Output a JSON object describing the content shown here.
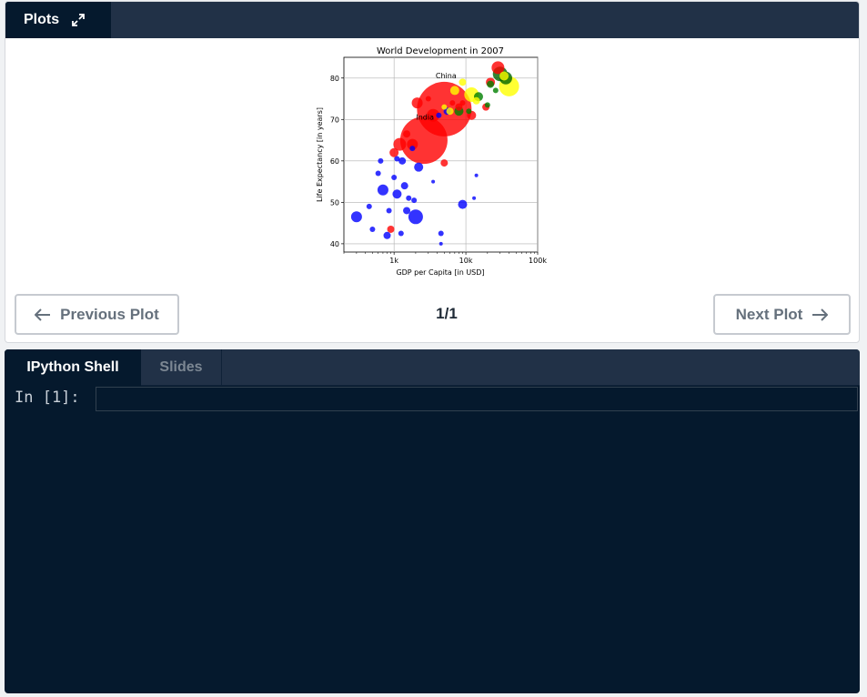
{
  "plots_panel": {
    "tab_label": "Plots",
    "expand_icon": "expand-icon",
    "counter": "1/1",
    "prev_label": "Previous Plot",
    "next_label": "Next Plot"
  },
  "chart_data": {
    "type": "scatter",
    "title": "World Development in 2007",
    "xlabel": "GDP per Capita [in USD]",
    "ylabel": "Life Expectancy [in years]",
    "xscale": "log",
    "xlim": [
      200,
      100000
    ],
    "ylim": [
      38,
      85
    ],
    "xticks": [
      "1k",
      "10k",
      "100k"
    ],
    "yticks": [
      "40",
      "50",
      "60",
      "70",
      "80"
    ],
    "grid": true,
    "annotations": [
      {
        "text": "India",
        "x": 2700,
        "y": 70
      },
      {
        "text": "China",
        "x": 5300,
        "y": 80
      }
    ],
    "points": [
      {
        "x": 2600,
        "y": 65,
        "c": "#ff0000",
        "s": 26
      },
      {
        "x": 5000,
        "y": 72.5,
        "c": "#ff0000",
        "s": 30
      },
      {
        "x": 1800,
        "y": 64,
        "c": "#ff0000",
        "s": 6
      },
      {
        "x": 1200,
        "y": 64,
        "c": "#ff0000",
        "s": 7
      },
      {
        "x": 1000,
        "y": 62,
        "c": "#ff0000",
        "s": 5
      },
      {
        "x": 2100,
        "y": 74,
        "c": "#ff0000",
        "s": 6
      },
      {
        "x": 3500,
        "y": 71,
        "c": "#ff0000",
        "s": 7
      },
      {
        "x": 12000,
        "y": 71,
        "c": "#ff0000",
        "s": 5
      },
      {
        "x": 28000,
        "y": 82.5,
        "c": "#ff0000",
        "s": 7
      },
      {
        "x": 22000,
        "y": 79,
        "c": "#ff0000",
        "s": 5
      },
      {
        "x": 19000,
        "y": 73,
        "c": "#ff0000",
        "s": 4
      },
      {
        "x": 5000,
        "y": 59.5,
        "c": "#ff0000",
        "s": 4
      },
      {
        "x": 900,
        "y": 43.5,
        "c": "#ff0000",
        "s": 4
      },
      {
        "x": 1500,
        "y": 66.5,
        "c": "#ff0000",
        "s": 4
      },
      {
        "x": 8000,
        "y": 73,
        "c": "#ff0000",
        "s": 4
      },
      {
        "x": 9000,
        "y": 74,
        "c": "#ff0000",
        "s": 3
      },
      {
        "x": 3000,
        "y": 75,
        "c": "#ff0000",
        "s": 3
      },
      {
        "x": 6500,
        "y": 74,
        "c": "#ff0000",
        "s": 3
      },
      {
        "x": 2200,
        "y": 58.5,
        "c": "#0000ff",
        "s": 5
      },
      {
        "x": 2000,
        "y": 46.5,
        "c": "#0000ff",
        "s": 8
      },
      {
        "x": 300,
        "y": 46.5,
        "c": "#0000ff",
        "s": 6
      },
      {
        "x": 700,
        "y": 53,
        "c": "#0000ff",
        "s": 6
      },
      {
        "x": 1100,
        "y": 52,
        "c": "#0000ff",
        "s": 5
      },
      {
        "x": 1300,
        "y": 60,
        "c": "#0000ff",
        "s": 4
      },
      {
        "x": 1400,
        "y": 54,
        "c": "#0000ff",
        "s": 4
      },
      {
        "x": 1500,
        "y": 48,
        "c": "#0000ff",
        "s": 4
      },
      {
        "x": 1900,
        "y": 50.5,
        "c": "#0000ff",
        "s": 3
      },
      {
        "x": 9000,
        "y": 49.5,
        "c": "#0000ff",
        "s": 5
      },
      {
        "x": 1800,
        "y": 63,
        "c": "#0000ff",
        "s": 3
      },
      {
        "x": 800,
        "y": 42,
        "c": "#0000ff",
        "s": 4
      },
      {
        "x": 1250,
        "y": 42.5,
        "c": "#0000ff",
        "s": 3
      },
      {
        "x": 4500,
        "y": 42.5,
        "c": "#0000ff",
        "s": 3
      },
      {
        "x": 600,
        "y": 57,
        "c": "#0000ff",
        "s": 3
      },
      {
        "x": 1000,
        "y": 56,
        "c": "#0000ff",
        "s": 3
      },
      {
        "x": 1600,
        "y": 51,
        "c": "#0000ff",
        "s": 3
      },
      {
        "x": 3500,
        "y": 55,
        "c": "#0000ff",
        "s": 2
      },
      {
        "x": 450,
        "y": 49,
        "c": "#0000ff",
        "s": 3
      },
      {
        "x": 500,
        "y": 43.5,
        "c": "#0000ff",
        "s": 3
      },
      {
        "x": 850,
        "y": 48,
        "c": "#0000ff",
        "s": 3
      },
      {
        "x": 5500,
        "y": 72,
        "c": "#0000ff",
        "s": 4
      },
      {
        "x": 4200,
        "y": 71,
        "c": "#0000ff",
        "s": 3
      },
      {
        "x": 14000,
        "y": 56.5,
        "c": "#0000ff",
        "s": 2
      },
      {
        "x": 13000,
        "y": 51,
        "c": "#0000ff",
        "s": 2
      },
      {
        "x": 4500,
        "y": 40,
        "c": "#0000ff",
        "s": 2
      },
      {
        "x": 650,
        "y": 60,
        "c": "#0000ff",
        "s": 3
      },
      {
        "x": 1100,
        "y": 60.5,
        "c": "#0000ff",
        "s": 3
      },
      {
        "x": 40000,
        "y": 78,
        "c": "#ffff00",
        "s": 11
      },
      {
        "x": 12000,
        "y": 76,
        "c": "#ffff00",
        "s": 8
      },
      {
        "x": 7000,
        "y": 77,
        "c": "#ffff00",
        "s": 5
      },
      {
        "x": 9000,
        "y": 79,
        "c": "#ffff00",
        "s": 4
      },
      {
        "x": 6000,
        "y": 72,
        "c": "#ffff00",
        "s": 4
      },
      {
        "x": 14000,
        "y": 74.5,
        "c": "#ffff00",
        "s": 4
      },
      {
        "x": 34000,
        "y": 80.5,
        "c": "#ffff00",
        "s": 5
      },
      {
        "x": 5000,
        "y": 73,
        "c": "#ffff00",
        "s": 3
      },
      {
        "x": 30000,
        "y": 81,
        "c": "#006400",
        "s": 8
      },
      {
        "x": 36000,
        "y": 80,
        "c": "#006400",
        "s": 7
      },
      {
        "x": 15000,
        "y": 75.5,
        "c": "#008000",
        "s": 5
      },
      {
        "x": 8000,
        "y": 72,
        "c": "#008000",
        "s": 5
      },
      {
        "x": 22000,
        "y": 78.5,
        "c": "#008000",
        "s": 4
      },
      {
        "x": 20000,
        "y": 73.5,
        "c": "#008000",
        "s": 3
      },
      {
        "x": 26000,
        "y": 77,
        "c": "#008000",
        "s": 3
      },
      {
        "x": 11000,
        "y": 72,
        "c": "#008000",
        "s": 3
      }
    ]
  },
  "shell_panel": {
    "tabs": [
      "IPython Shell",
      "Slides"
    ],
    "prompt": "In [1]:",
    "input_value": ""
  }
}
